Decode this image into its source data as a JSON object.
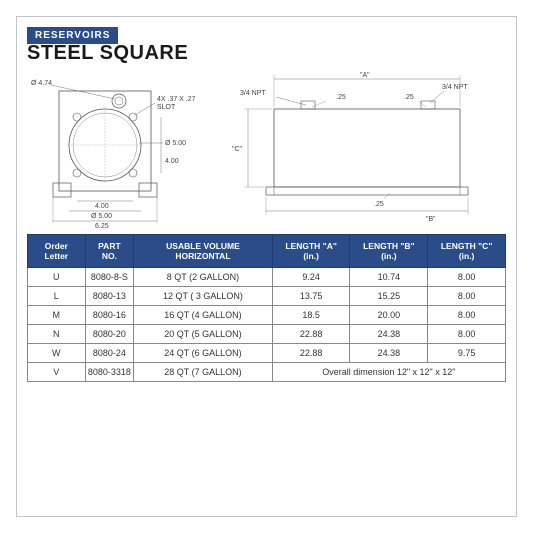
{
  "header": {
    "section_label": "RESERVOIRS",
    "title": "STEEL SQUARE"
  },
  "diagram_left": {
    "d1": "Ø 4.74",
    "slot": "4X .37 X .27",
    "slot2": "SLOT",
    "d5": "Ø 5.00",
    "d4": "4.00",
    "w4": "4.00",
    "w5": "Ø 5.00",
    "w6": "6.25"
  },
  "diagram_right": {
    "npt_left": "3/4 NPT",
    "npt_right": "3/4 NPT",
    "dimA": "\"A\"",
    "dimB": "\"B\"",
    "dimC": "\"C\"",
    "v25a": ".25",
    "v25b": ".25",
    "v25c": ".25"
  },
  "table": {
    "columns": [
      "Order Letter",
      "PART NO.",
      "USABLE VOLUME HORIZONTAL",
      "LENGTH \"A\" (in.)",
      "LENGTH \"B\" (in.)",
      "LENGTH \"C\" (in.)"
    ],
    "rows": [
      {
        "letter": "U",
        "part": "8080-8-S",
        "vol": "8 QT (2 GALLON)",
        "a": "9.24",
        "b": "10.74",
        "c": "8.00"
      },
      {
        "letter": "L",
        "part": "8080-13",
        "vol": "12 QT ( 3 GALLON)",
        "a": "13.75",
        "b": "15.25",
        "c": "8.00"
      },
      {
        "letter": "M",
        "part": "8080-16",
        "vol": "16 QT (4 GALLON)",
        "a": "18.5",
        "b": "20.00",
        "c": "8.00"
      },
      {
        "letter": "N",
        "part": "8080-20",
        "vol": "20 QT (5 GALLON)",
        "a": "22.88",
        "b": "24.38",
        "c": "8.00"
      },
      {
        "letter": "W",
        "part": "8080-24",
        "vol": "24 QT (6 GALLON)",
        "a": "22.88",
        "b": "24.38",
        "c": "9.75"
      }
    ],
    "last_row": {
      "letter": "V",
      "part": "8080-3318",
      "vol": "28 QT (7 GALLON)",
      "merged": "Overall dimension 12\" x 12\" x 12\""
    }
  },
  "colors": {
    "header_bg": "#2a4d8a",
    "border": "#888"
  }
}
